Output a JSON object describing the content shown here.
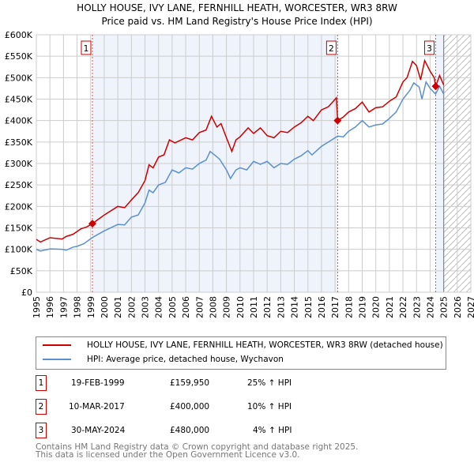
{
  "chart_data": {
    "type": "line",
    "title": "HOLLY HOUSE, IVY LANE, FERNHILL HEATH, WORCESTER, WR3 8RW",
    "subtitle": "Price paid vs. HM Land Registry's House Price Index (HPI)",
    "xlim": [
      1995,
      2027
    ],
    "ylim": [
      0,
      600000
    ],
    "x_ticks": [
      "1995",
      "1996",
      "1997",
      "1998",
      "1999",
      "2000",
      "2001",
      "2002",
      "2003",
      "2004",
      "2005",
      "2006",
      "2007",
      "2008",
      "2009",
      "2010",
      "2011",
      "2012",
      "2013",
      "2014",
      "2015",
      "2016",
      "2017",
      "2018",
      "2019",
      "2020",
      "2021",
      "2022",
      "2023",
      "2024",
      "2025",
      "2026",
      "2027"
    ],
    "y_ticks": [
      {
        "v": 0,
        "label": "£0"
      },
      {
        "v": 50000,
        "label": "£50K"
      },
      {
        "v": 100000,
        "label": "£100K"
      },
      {
        "v": 150000,
        "label": "£150K"
      },
      {
        "v": 200000,
        "label": "£200K"
      },
      {
        "v": 250000,
        "label": "£250K"
      },
      {
        "v": 300000,
        "label": "£300K"
      },
      {
        "v": 350000,
        "label": "£350K"
      },
      {
        "v": 400000,
        "label": "£400K"
      },
      {
        "v": 450000,
        "label": "£450K"
      },
      {
        "v": 500000,
        "label": "£500K"
      },
      {
        "v": 550000,
        "label": "£550K"
      },
      {
        "v": 600000,
        "label": "£600K"
      }
    ],
    "grid": true,
    "data_end": 2025.0,
    "series": [
      {
        "name": "HOLLY HOUSE, IVY LANE, FERNHILL HEATH, WORCESTER, WR3 8RW (detached house)",
        "color": "#cc0000",
        "points": [
          [
            1995,
            123
          ],
          [
            1995.3,
            117
          ],
          [
            1996,
            127
          ],
          [
            1996.9,
            124
          ],
          [
            1997.2,
            130
          ],
          [
            1997.7,
            135
          ],
          [
            1998.3,
            148
          ],
          [
            1998.7,
            152
          ],
          [
            1999.13,
            160
          ],
          [
            2000,
            180
          ],
          [
            2001,
            200
          ],
          [
            2001.5,
            197
          ],
          [
            2002,
            215
          ],
          [
            2002.5,
            232
          ],
          [
            2003,
            260
          ],
          [
            2003.3,
            297
          ],
          [
            2003.6,
            290
          ],
          [
            2004,
            315
          ],
          [
            2004.4,
            320
          ],
          [
            2004.8,
            355
          ],
          [
            2005.2,
            348
          ],
          [
            2006,
            360
          ],
          [
            2006.5,
            355
          ],
          [
            2007,
            372
          ],
          [
            2007.5,
            378
          ],
          [
            2007.9,
            410
          ],
          [
            2008.3,
            385
          ],
          [
            2008.6,
            393
          ],
          [
            2009,
            360
          ],
          [
            2009.4,
            328
          ],
          [
            2009.7,
            355
          ],
          [
            2010,
            362
          ],
          [
            2010.6,
            383
          ],
          [
            2011,
            370
          ],
          [
            2011.5,
            383
          ],
          [
            2012,
            365
          ],
          [
            2012.5,
            360
          ],
          [
            2013,
            375
          ],
          [
            2013.5,
            372
          ],
          [
            2014,
            385
          ],
          [
            2014.5,
            395
          ],
          [
            2015,
            410
          ],
          [
            2015.4,
            400
          ],
          [
            2016,
            425
          ],
          [
            2016.5,
            432
          ],
          [
            2017.1,
            453
          ],
          [
            2017.19,
            400
          ],
          [
            2017.6,
            408
          ],
          [
            2018,
            420
          ],
          [
            2018.5,
            428
          ],
          [
            2019,
            443
          ],
          [
            2019.5,
            420
          ],
          [
            2020,
            430
          ],
          [
            2020.5,
            432
          ],
          [
            2021,
            445
          ],
          [
            2021.5,
            455
          ],
          [
            2022,
            490
          ],
          [
            2022.3,
            500
          ],
          [
            2022.7,
            538
          ],
          [
            2023,
            528
          ],
          [
            2023.3,
            495
          ],
          [
            2023.6,
            540
          ],
          [
            2024,
            515
          ],
          [
            2024.3,
            500
          ],
          [
            2024.41,
            480
          ],
          [
            2024.7,
            505
          ],
          [
            2025,
            483
          ]
        ]
      },
      {
        "name": "HPI: Average price, detached house, Wychavon",
        "color": "#5b8fd0",
        "points": [
          [
            1995,
            100
          ],
          [
            1995.3,
            96
          ],
          [
            1996,
            101
          ],
          [
            1996.9,
            100
          ],
          [
            1997.2,
            98
          ],
          [
            1997.7,
            105
          ],
          [
            1998,
            107
          ],
          [
            1998.5,
            113
          ],
          [
            1999.1,
            127
          ],
          [
            2000,
            143
          ],
          [
            2001,
            158
          ],
          [
            2001.5,
            157
          ],
          [
            2002,
            175
          ],
          [
            2002.5,
            180
          ],
          [
            2003,
            208
          ],
          [
            2003.3,
            238
          ],
          [
            2003.6,
            232
          ],
          [
            2004,
            250
          ],
          [
            2004.5,
            256
          ],
          [
            2005,
            285
          ],
          [
            2005.5,
            278
          ],
          [
            2006,
            290
          ],
          [
            2006.5,
            287
          ],
          [
            2007,
            300
          ],
          [
            2007.5,
            308
          ],
          [
            2007.8,
            328
          ],
          [
            2008.2,
            318
          ],
          [
            2008.5,
            310
          ],
          [
            2009,
            285
          ],
          [
            2009.3,
            265
          ],
          [
            2009.7,
            285
          ],
          [
            2010,
            290
          ],
          [
            2010.5,
            285
          ],
          [
            2011,
            305
          ],
          [
            2011.5,
            298
          ],
          [
            2012,
            305
          ],
          [
            2012.5,
            290
          ],
          [
            2013,
            300
          ],
          [
            2013.5,
            298
          ],
          [
            2014,
            310
          ],
          [
            2014.5,
            318
          ],
          [
            2015,
            330
          ],
          [
            2015.3,
            320
          ],
          [
            2016,
            340
          ],
          [
            2016.5,
            350
          ],
          [
            2017.2,
            364
          ],
          [
            2017.6,
            362
          ],
          [
            2018,
            375
          ],
          [
            2018.5,
            385
          ],
          [
            2019,
            400
          ],
          [
            2019.5,
            385
          ],
          [
            2020,
            390
          ],
          [
            2020.5,
            392
          ],
          [
            2021,
            405
          ],
          [
            2021.5,
            420
          ],
          [
            2022,
            450
          ],
          [
            2022.5,
            470
          ],
          [
            2022.8,
            488
          ],
          [
            2023.2,
            478
          ],
          [
            2023.4,
            450
          ],
          [
            2023.7,
            490
          ],
          [
            2024,
            475
          ],
          [
            2024.4,
            462
          ],
          [
            2024.7,
            480
          ],
          [
            2025,
            462
          ]
        ]
      }
    ],
    "sales": [
      {
        "n": "1",
        "x": 1999.13,
        "price": 159950,
        "date": "19-FEB-1999",
        "price_label": "£159,950",
        "hpi": "25% ↑ HPI"
      },
      {
        "n": "2",
        "x": 2017.19,
        "price": 400000,
        "date": "10-MAR-2017",
        "price_label": "£400,000",
        "hpi": "10% ↑ HPI"
      },
      {
        "n": "3",
        "x": 2024.41,
        "price": 480000,
        "date": "30-MAY-2024",
        "price_label": "£480,000",
        "hpi": "4% ↑ HPI"
      }
    ]
  },
  "footer": {
    "line1": "Contains HM Land Registry data © Crown copyright and database right 2025.",
    "line2": "This data is licensed under the Open Government Licence v3.0."
  }
}
